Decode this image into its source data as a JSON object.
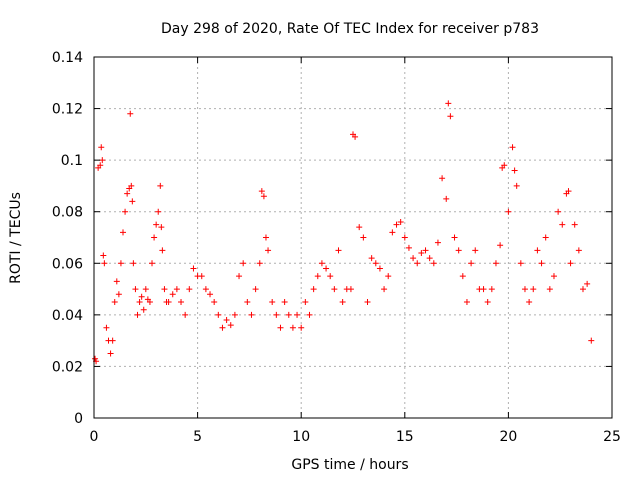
{
  "chart_data": {
    "type": "scatter",
    "title": "Day 298 of 2020, Rate Of TEC Index for receiver p783",
    "xlabel": "GPS time / hours",
    "ylabel": "ROTI / TECUs",
    "xlim": [
      0,
      25
    ],
    "ylim": [
      0,
      0.14
    ],
    "xticks": [
      0,
      5,
      10,
      15,
      20,
      25
    ],
    "xtick_labels": [
      "0",
      "5",
      "10",
      "15",
      "20",
      "25"
    ],
    "yticks": [
      0,
      0.02,
      0.04,
      0.06,
      0.08,
      0.1,
      0.12,
      0.14
    ],
    "ytick_labels": [
      "0",
      "0.02",
      "0.04",
      "0.06",
      "0.08",
      "0.1",
      "0.12",
      "0.14"
    ],
    "grid": true,
    "legend": "none",
    "marker": "plus",
    "color": "#ff0000",
    "series": [
      {
        "x": [
          0.05,
          0.1,
          0.2,
          0.3,
          0.35,
          0.4,
          0.45,
          0.5,
          0.6,
          0.7,
          0.8,
          0.9,
          1.0,
          1.1,
          1.2,
          1.3,
          1.4,
          1.5,
          1.6,
          1.7,
          1.75,
          1.8,
          1.85,
          1.9,
          2.0,
          2.1,
          2.2,
          2.3,
          2.4,
          2.5,
          2.6,
          2.7,
          2.8,
          2.9,
          3.0,
          3.1,
          3.2,
          3.25,
          3.3,
          3.4,
          3.5,
          3.6,
          3.8,
          4.0,
          4.2,
          4.4,
          4.6,
          4.8,
          5.0,
          5.2,
          5.4,
          5.6,
          5.8,
          6.0,
          6.2,
          6.4,
          6.6,
          6.8,
          7.0,
          7.2,
          7.4,
          7.6,
          7.8,
          8.0,
          8.1,
          8.2,
          8.3,
          8.4,
          8.6,
          8.8,
          9.0,
          9.2,
          9.4,
          9.6,
          9.8,
          10.0,
          10.2,
          10.4,
          10.6,
          10.8,
          11.0,
          11.2,
          11.4,
          11.6,
          11.8,
          12.0,
          12.2,
          12.4,
          12.5,
          12.6,
          12.8,
          13.0,
          13.2,
          13.4,
          13.6,
          13.8,
          14.0,
          14.2,
          14.4,
          14.6,
          14.8,
          15.0,
          15.2,
          15.4,
          15.6,
          15.8,
          16.0,
          16.2,
          16.4,
          16.6,
          16.8,
          17.0,
          17.1,
          17.2,
          17.4,
          17.6,
          17.8,
          18.0,
          18.2,
          18.4,
          18.6,
          18.8,
          19.0,
          19.2,
          19.4,
          19.6,
          19.7,
          19.8,
          20.0,
          20.2,
          20.3,
          20.4,
          20.6,
          20.8,
          21.0,
          21.2,
          21.4,
          21.6,
          21.8,
          22.0,
          22.2,
          22.4,
          22.6,
          22.8,
          22.9,
          23.0,
          23.2,
          23.4,
          23.6,
          23.8,
          24.0
        ],
        "y": [
          0.023,
          0.022,
          0.097,
          0.098,
          0.105,
          0.1,
          0.063,
          0.06,
          0.035,
          0.03,
          0.025,
          0.03,
          0.045,
          0.053,
          0.048,
          0.06,
          0.072,
          0.08,
          0.087,
          0.089,
          0.118,
          0.09,
          0.084,
          0.06,
          0.05,
          0.04,
          0.045,
          0.047,
          0.042,
          0.05,
          0.046,
          0.045,
          0.06,
          0.07,
          0.075,
          0.08,
          0.09,
          0.074,
          0.065,
          0.05,
          0.045,
          0.045,
          0.048,
          0.05,
          0.045,
          0.04,
          0.05,
          0.058,
          0.055,
          0.055,
          0.05,
          0.048,
          0.045,
          0.04,
          0.035,
          0.038,
          0.036,
          0.04,
          0.055,
          0.06,
          0.045,
          0.04,
          0.05,
          0.06,
          0.088,
          0.086,
          0.07,
          0.065,
          0.045,
          0.04,
          0.035,
          0.045,
          0.04,
          0.035,
          0.04,
          0.035,
          0.045,
          0.04,
          0.05,
          0.055,
          0.06,
          0.058,
          0.055,
          0.05,
          0.065,
          0.045,
          0.05,
          0.05,
          0.11,
          0.109,
          0.074,
          0.07,
          0.045,
          0.062,
          0.06,
          0.058,
          0.05,
          0.055,
          0.072,
          0.075,
          0.076,
          0.07,
          0.066,
          0.062,
          0.06,
          0.064,
          0.065,
          0.062,
          0.06,
          0.068,
          0.093,
          0.085,
          0.122,
          0.117,
          0.07,
          0.065,
          0.055,
          0.045,
          0.06,
          0.065,
          0.05,
          0.05,
          0.045,
          0.05,
          0.06,
          0.067,
          0.097,
          0.098,
          0.08,
          0.105,
          0.096,
          0.09,
          0.06,
          0.05,
          0.045,
          0.05,
          0.065,
          0.06,
          0.07,
          0.05,
          0.055,
          0.08,
          0.075,
          0.087,
          0.088,
          0.06,
          0.075,
          0.065,
          0.05,
          0.052,
          0.03
        ]
      }
    ]
  }
}
